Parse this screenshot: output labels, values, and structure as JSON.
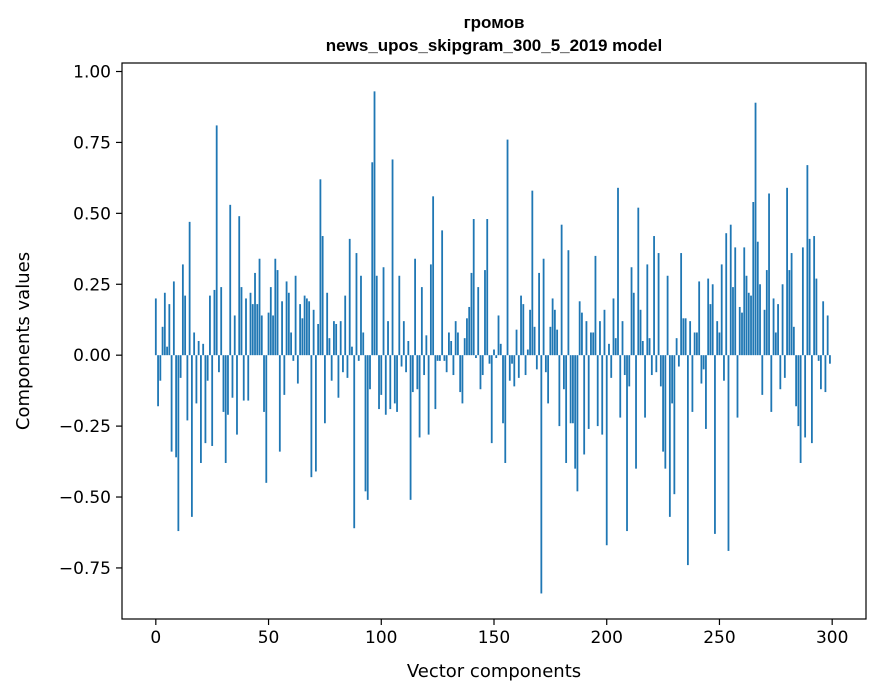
{
  "chart_data": {
    "type": "bar",
    "title": "громов",
    "subtitle": "news_upos_skipgram_300_5_2019 model",
    "xlabel": "Vector components",
    "ylabel": "Components values",
    "xlim": [
      -15,
      315
    ],
    "ylim": [
      -0.93,
      1.03
    ],
    "xticks": [
      0,
      50,
      100,
      150,
      200,
      250,
      300
    ],
    "xtick_labels": [
      "0",
      "50",
      "100",
      "150",
      "200",
      "250",
      "300"
    ],
    "yticks": [
      1.0,
      0.75,
      0.5,
      0.25,
      0.0,
      -0.25,
      -0.5,
      -0.75
    ],
    "ytick_labels": [
      "1.00",
      "0.75",
      "0.50",
      "0.25",
      "0.00",
      "−0.25",
      "−0.50",
      "−0.75"
    ],
    "grid": false,
    "bar_color": "#1f77b4",
    "x": "0..299 (component index)",
    "values": [
      0.2,
      -0.18,
      -0.09,
      0.1,
      0.22,
      0.03,
      0.18,
      -0.34,
      0.26,
      -0.36,
      -0.62,
      -0.08,
      0.32,
      0.21,
      -0.23,
      0.47,
      -0.57,
      0.08,
      -0.17,
      0.05,
      -0.38,
      0.04,
      -0.31,
      -0.09,
      0.21,
      -0.32,
      0.23,
      0.81,
      -0.06,
      0.24,
      -0.2,
      -0.38,
      -0.21,
      0.53,
      -0.15,
      0.14,
      -0.28,
      0.49,
      0.24,
      -0.16,
      0.2,
      -0.16,
      0.22,
      0.18,
      0.29,
      0.18,
      0.34,
      0.14,
      -0.2,
      -0.45,
      0.15,
      0.24,
      0.14,
      0.34,
      0.3,
      -0.34,
      0.19,
      -0.14,
      0.26,
      0.22,
      0.08,
      -0.02,
      0.28,
      -0.1,
      0.18,
      0.13,
      0.21,
      0.2,
      0.19,
      -0.43,
      0.16,
      -0.41,
      0.11,
      0.62,
      0.42,
      -0.24,
      0.22,
      0.06,
      -0.09,
      0.12,
      0.11,
      -0.15,
      0.12,
      -0.06,
      0.21,
      -0.08,
      0.41,
      0.03,
      -0.61,
      0.36,
      -0.02,
      0.28,
      0.08,
      -0.48,
      -0.51,
      -0.12,
      0.68,
      0.93,
      0.28,
      -0.19,
      -0.14,
      0.31,
      -0.21,
      0.12,
      -0.19,
      0.69,
      -0.17,
      -0.2,
      0.28,
      -0.04,
      0.12,
      -0.06,
      0.05,
      -0.51,
      -0.13,
      0.34,
      -0.12,
      -0.29,
      0.24,
      -0.07,
      0.07,
      -0.28,
      0.32,
      0.56,
      -0.19,
      -0.02,
      -0.02,
      0.44,
      -0.02,
      -0.06,
      0.08,
      0.05,
      -0.07,
      0.12,
      0.08,
      -0.13,
      -0.17,
      0.06,
      0.13,
      0.17,
      0.29,
      0.48,
      -0.01,
      0.24,
      -0.12,
      -0.07,
      0.3,
      0.48,
      -0.03,
      -0.31,
      0.02,
      -0.01,
      0.14,
      0.04,
      -0.24,
      -0.38,
      0.76,
      -0.09,
      -0.03,
      -0.11,
      0.09,
      -0.08,
      0.21,
      0.18,
      -0.07,
      0.02,
      0.16,
      0.58,
      0.1,
      -0.05,
      0.29,
      -0.84,
      0.34,
      -0.06,
      -0.17,
      0.1,
      0.2,
      0.16,
      0.09,
      -0.25,
      0.46,
      -0.12,
      -0.38,
      0.37,
      -0.24,
      -0.24,
      -0.4,
      -0.48,
      0.19,
      0.15,
      -0.35,
      0.12,
      -0.26,
      0.08,
      0.08,
      0.35,
      -0.25,
      0.12,
      -0.28,
      0.16,
      -0.67,
      0.04,
      -0.08,
      0.2,
      0.06,
      0.59,
      -0.22,
      0.12,
      -0.07,
      -0.62,
      -0.11,
      0.31,
      0.22,
      -0.4,
      0.52,
      0.16,
      0.05,
      -0.22,
      0.32,
      0.06,
      -0.07,
      0.42,
      -0.06,
      0.36,
      -0.11,
      -0.34,
      -0.4,
      0.28,
      -0.57,
      -0.17,
      -0.49,
      0.06,
      -0.04,
      0.36,
      0.13,
      0.13,
      -0.74,
      0.12,
      -0.2,
      0.08,
      0.08,
      0.26,
      -0.1,
      -0.05,
      -0.26,
      0.27,
      0.18,
      0.25,
      -0.63,
      0.12,
      0.08,
      0.32,
      -0.09,
      0.43,
      -0.69,
      0.46,
      0.24,
      0.38,
      -0.22,
      0.17,
      0.15,
      0.38,
      0.28,
      0.22,
      0.21,
      0.54,
      0.89,
      0.4,
      0.25,
      -0.14,
      0.16,
      0.3,
      0.57,
      -0.2,
      0.2,
      0.08,
      0.18,
      -0.12,
      0.25,
      -0.08,
      0.59,
      0.3,
      0.36,
      0.1,
      -0.18,
      -0.25,
      -0.38,
      0.38,
      -0.29,
      0.67,
      0.41,
      -0.31,
      0.42,
      0.27,
      -0.02,
      -0.12,
      0.19,
      -0.13,
      0.14,
      -0.03
    ]
  }
}
